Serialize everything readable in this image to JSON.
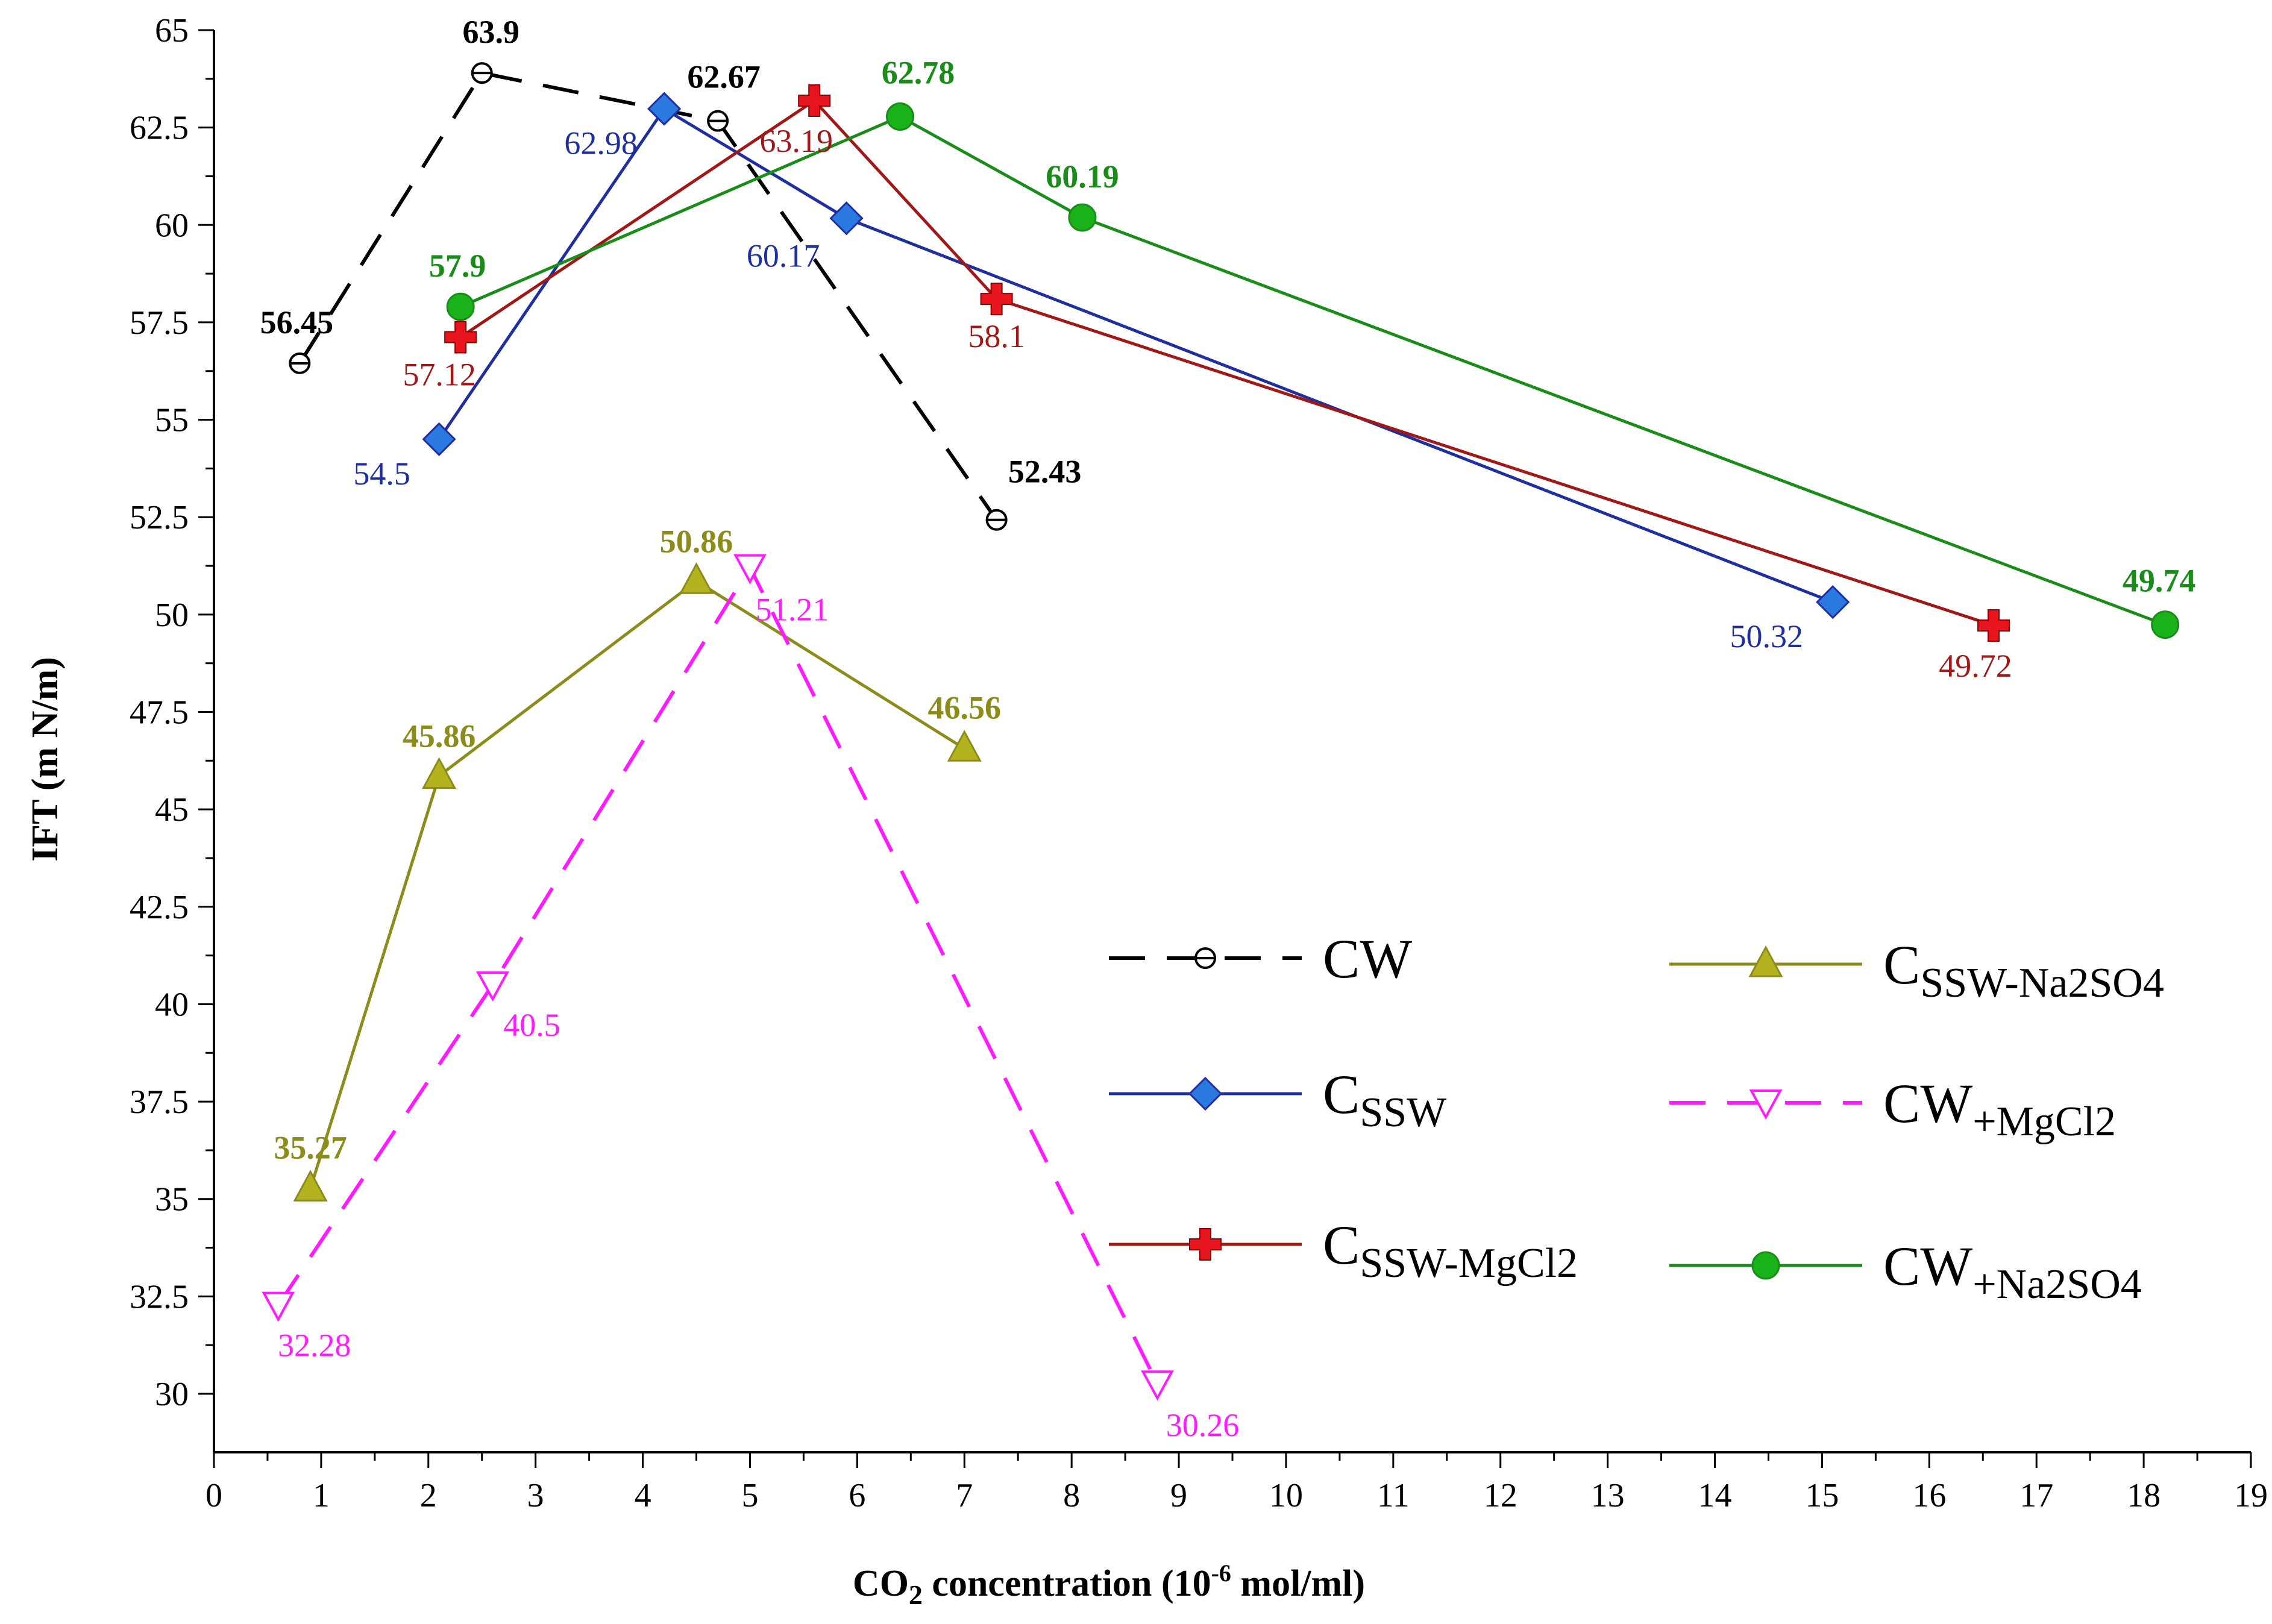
{
  "chart_data": {
    "type": "line",
    "xlabel": "CO",
    "xlabel_subscript": "2",
    "xlabel_suffix": " concentration (10",
    "xlabel_superscript": "-6",
    "xlabel_unit": " mol/ml)",
    "ylabel": "IFT (m N/m)",
    "xlim": [
      0,
      19
    ],
    "ylim": [
      28.5,
      65
    ],
    "x_ticks": [
      "0",
      "1",
      "2",
      "3",
      "4",
      "5",
      "6",
      "7",
      "8",
      "9",
      "10",
      "11",
      "12",
      "13",
      "14",
      "15",
      "16",
      "17",
      "18",
      "19"
    ],
    "y_ticks": [
      "30",
      "32.5",
      "35",
      "37.5",
      "40",
      "42.5",
      "45",
      "47.5",
      "50",
      "52.5",
      "55",
      "57.5",
      "60",
      "62.5",
      "65"
    ],
    "legend_position": "lower-right",
    "series": [
      {
        "name": "CW",
        "name_sub": "",
        "color": "#000000",
        "marker": "theta-circle",
        "dash": true,
        "label_style": "bold",
        "x": [
          0.8,
          2.5,
          4.7,
          7.3
        ],
        "y": [
          56.45,
          63.9,
          62.67,
          52.43
        ],
        "labels": [
          "56.45",
          "63.9",
          "62.67",
          "52.43"
        ]
      },
      {
        "name": "C",
        "name_sub": "SSW",
        "color": "#1f2f9e",
        "marker_color": "#2979e0",
        "marker": "diamond",
        "dash": false,
        "label_style": "normal",
        "x": [
          2.1,
          4.2,
          5.9,
          15.1
        ],
        "y": [
          54.5,
          62.98,
          60.17,
          50.32
        ],
        "labels": [
          "54.5",
          "62.98",
          "60.17",
          "50.32"
        ]
      },
      {
        "name": "C",
        "name_sub": "SSW-MgCl2",
        "color": "#a01818",
        "marker_color": "#e8141e",
        "marker": "plus",
        "dash": false,
        "label_style": "normal",
        "x": [
          2.3,
          5.6,
          7.3,
          16.6
        ],
        "y": [
          57.12,
          63.19,
          58.1,
          49.72
        ],
        "labels": [
          "57.12",
          "63.19",
          "58.1",
          "49.72"
        ]
      },
      {
        "name": "C",
        "name_sub": "SSW-Na2SO4",
        "color": "#8c8c1a",
        "marker_color": "#b3b31f",
        "marker": "triangle-up",
        "dash": false,
        "label_style": "bold",
        "x": [
          0.9,
          2.1,
          4.5,
          7.0
        ],
        "y": [
          35.27,
          45.86,
          50.86,
          46.56
        ],
        "labels": [
          "35.27",
          "45.86",
          "50.86",
          "46.56"
        ]
      },
      {
        "name": "CW",
        "name_sub": "+MgCl2",
        "color": "#ff1aff",
        "marker": "triangle-down",
        "dash": true,
        "label_style": "normal",
        "x": [
          0.6,
          2.6,
          5.0,
          8.8
        ],
        "y": [
          32.28,
          40.5,
          51.21,
          30.26
        ],
        "labels": [
          "32.28",
          "40.5",
          "51.21",
          "30.26"
        ]
      },
      {
        "name": "CW",
        "name_sub": "+Na2SO4",
        "color": "#1a8c1a",
        "marker_color": "#19b319",
        "marker": "circle",
        "dash": false,
        "label_style": "bold",
        "x": [
          2.3,
          6.4,
          8.1,
          18.2
        ],
        "y": [
          57.9,
          62.78,
          60.19,
          49.74
        ],
        "labels": [
          "57.9",
          "62.78",
          "60.19",
          "49.74"
        ]
      }
    ]
  }
}
